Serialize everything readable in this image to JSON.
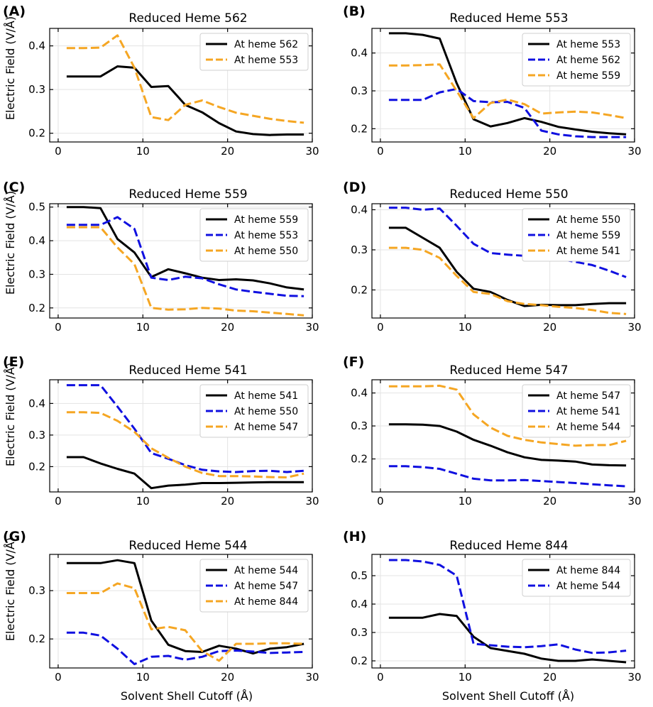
{
  "figure": {
    "xlabel": "Solvent Shell Cutoff (Å)",
    "ylabel": "Electric Field (V/Å)"
  },
  "colors": {
    "black": "#000000",
    "blue": "#1010e0",
    "orange": "#f5a623"
  },
  "chart_data": [
    {
      "type": "line",
      "label": "(A)",
      "title": "Reduced Heme 562",
      "xlim": [
        -1,
        30
      ],
      "ylim": [
        0.18,
        0.44
      ],
      "xticks": [
        0,
        10,
        20,
        30
      ],
      "yticks": [
        0.2,
        0.3,
        0.4
      ],
      "ytick_labels": [
        "0.2",
        "0.3",
        "0.4"
      ],
      "series": [
        {
          "name": "At heme 562",
          "color": "black",
          "style": "solid",
          "x": [
            1,
            3,
            5,
            7,
            9,
            11,
            13,
            15,
            17,
            19,
            21,
            23,
            25,
            27,
            29
          ],
          "y": [
            0.33,
            0.33,
            0.33,
            0.353,
            0.35,
            0.306,
            0.308,
            0.265,
            0.248,
            0.223,
            0.204,
            0.198,
            0.196,
            0.197,
            0.197
          ]
        },
        {
          "name": "At heme 553",
          "color": "orange",
          "style": "dashed",
          "x": [
            1,
            3,
            5,
            7,
            9,
            11,
            13,
            15,
            17,
            19,
            21,
            23,
            25,
            27,
            29
          ],
          "y": [
            0.395,
            0.395,
            0.396,
            0.424,
            0.35,
            0.237,
            0.23,
            0.265,
            0.275,
            0.26,
            0.247,
            0.24,
            0.233,
            0.228,
            0.224
          ]
        }
      ]
    },
    {
      "type": "line",
      "label": "(B)",
      "title": "Reduced Heme 553",
      "xlim": [
        -1,
        30
      ],
      "ylim": [
        0.165,
        0.465
      ],
      "xticks": [
        0,
        10,
        20,
        30
      ],
      "yticks": [
        0.2,
        0.3,
        0.4
      ],
      "ytick_labels": [
        "0.2",
        "0.3",
        "0.4"
      ],
      "series": [
        {
          "name": "At heme 553",
          "color": "black",
          "style": "solid",
          "x": [
            1,
            3,
            5,
            7,
            9,
            11,
            13,
            15,
            17,
            19,
            21,
            23,
            25,
            27,
            29
          ],
          "y": [
            0.452,
            0.452,
            0.448,
            0.438,
            0.32,
            0.225,
            0.206,
            0.215,
            0.228,
            0.218,
            0.205,
            0.198,
            0.192,
            0.188,
            0.185
          ]
        },
        {
          "name": "At heme 562",
          "color": "blue",
          "style": "dashed",
          "x": [
            1,
            3,
            5,
            7,
            9,
            11,
            13,
            15,
            17,
            19,
            21,
            23,
            25,
            27,
            29
          ],
          "y": [
            0.276,
            0.276,
            0.276,
            0.296,
            0.305,
            0.273,
            0.27,
            0.271,
            0.255,
            0.195,
            0.185,
            0.18,
            0.178,
            0.178,
            0.178
          ]
        },
        {
          "name": "At heme 559",
          "color": "orange",
          "style": "dashed",
          "x": [
            1,
            3,
            5,
            7,
            9,
            11,
            13,
            15,
            17,
            19,
            21,
            23,
            25,
            27,
            29
          ],
          "y": [
            0.367,
            0.367,
            0.368,
            0.37,
            0.3,
            0.228,
            0.268,
            0.277,
            0.265,
            0.24,
            0.243,
            0.245,
            0.243,
            0.236,
            0.228
          ]
        }
      ]
    },
    {
      "type": "line",
      "label": "(C)",
      "title": "Reduced Heme 559",
      "xlim": [
        -1,
        30
      ],
      "ylim": [
        0.17,
        0.51
      ],
      "xticks": [
        0,
        10,
        20,
        30
      ],
      "yticks": [
        0.2,
        0.3,
        0.4,
        0.5
      ],
      "ytick_labels": [
        "0.2",
        "0.3",
        "0.4",
        "0.5"
      ],
      "series": [
        {
          "name": "At heme 559",
          "color": "black",
          "style": "solid",
          "x": [
            1,
            3,
            5,
            7,
            9,
            11,
            13,
            15,
            17,
            19,
            21,
            23,
            25,
            27,
            29
          ],
          "y": [
            0.5,
            0.5,
            0.497,
            0.405,
            0.365,
            0.292,
            0.315,
            0.303,
            0.29,
            0.283,
            0.285,
            0.282,
            0.273,
            0.261,
            0.255
          ]
        },
        {
          "name": "At heme 553",
          "color": "blue",
          "style": "dashed",
          "x": [
            1,
            3,
            5,
            7,
            9,
            11,
            13,
            15,
            17,
            19,
            21,
            23,
            25,
            27,
            29
          ],
          "y": [
            0.447,
            0.447,
            0.447,
            0.47,
            0.435,
            0.29,
            0.283,
            0.293,
            0.288,
            0.27,
            0.255,
            0.248,
            0.242,
            0.236,
            0.235
          ]
        },
        {
          "name": "At heme 550",
          "color": "orange",
          "style": "dashed",
          "x": [
            1,
            3,
            5,
            7,
            9,
            11,
            13,
            15,
            17,
            19,
            21,
            23,
            25,
            27,
            29
          ],
          "y": [
            0.44,
            0.44,
            0.44,
            0.38,
            0.33,
            0.2,
            0.195,
            0.196,
            0.2,
            0.198,
            0.192,
            0.19,
            0.186,
            0.182,
            0.178
          ]
        }
      ]
    },
    {
      "type": "line",
      "label": "(D)",
      "title": "Reduced Heme 550",
      "xlim": [
        -1,
        30
      ],
      "ylim": [
        0.13,
        0.415
      ],
      "xticks": [
        0,
        10,
        20,
        30
      ],
      "yticks": [
        0.2,
        0.3,
        0.4
      ],
      "ytick_labels": [
        "0.2",
        "0.3",
        "0.4"
      ],
      "series": [
        {
          "name": "At heme 550",
          "color": "black",
          "style": "solid",
          "x": [
            1,
            3,
            5,
            7,
            9,
            11,
            13,
            15,
            17,
            19,
            21,
            23,
            25,
            27,
            29
          ],
          "y": [
            0.355,
            0.355,
            0.33,
            0.305,
            0.245,
            0.203,
            0.195,
            0.175,
            0.16,
            0.163,
            0.162,
            0.162,
            0.165,
            0.167,
            0.167
          ]
        },
        {
          "name": "At heme 559",
          "color": "blue",
          "style": "dashed",
          "x": [
            1,
            3,
            5,
            7,
            9,
            11,
            13,
            15,
            17,
            19,
            21,
            23,
            25,
            27,
            29
          ],
          "y": [
            0.405,
            0.405,
            0.4,
            0.403,
            0.36,
            0.315,
            0.292,
            0.288,
            0.285,
            0.282,
            0.278,
            0.27,
            0.262,
            0.248,
            0.232
          ]
        },
        {
          "name": "At heme 541",
          "color": "orange",
          "style": "dashed",
          "x": [
            1,
            3,
            5,
            7,
            9,
            11,
            13,
            15,
            17,
            19,
            21,
            23,
            25,
            27,
            29
          ],
          "y": [
            0.305,
            0.305,
            0.3,
            0.28,
            0.235,
            0.195,
            0.19,
            0.172,
            0.165,
            0.162,
            0.158,
            0.155,
            0.15,
            0.143,
            0.14
          ]
        }
      ]
    },
    {
      "type": "line",
      "label": "(E)",
      "title": "Reduced Heme 541",
      "xlim": [
        -1,
        30
      ],
      "ylim": [
        0.12,
        0.475
      ],
      "xticks": [
        0,
        10,
        20,
        30
      ],
      "yticks": [
        0.2,
        0.3,
        0.4
      ],
      "ytick_labels": [
        "0.2",
        "0.3",
        "0.4"
      ],
      "series": [
        {
          "name": "At heme 541",
          "color": "black",
          "style": "solid",
          "x": [
            1,
            3,
            5,
            7,
            9,
            11,
            13,
            15,
            17,
            19,
            21,
            23,
            25,
            27,
            29
          ],
          "y": [
            0.23,
            0.23,
            0.21,
            0.193,
            0.178,
            0.132,
            0.14,
            0.143,
            0.148,
            0.148,
            0.149,
            0.15,
            0.151,
            0.151,
            0.151
          ]
        },
        {
          "name": "At heme 550",
          "color": "blue",
          "style": "dashed",
          "x": [
            1,
            3,
            5,
            7,
            9,
            11,
            13,
            15,
            17,
            19,
            21,
            23,
            25,
            27,
            29
          ],
          "y": [
            0.458,
            0.458,
            0.458,
            0.39,
            0.32,
            0.243,
            0.225,
            0.205,
            0.19,
            0.185,
            0.183,
            0.186,
            0.187,
            0.183,
            0.187
          ]
        },
        {
          "name": "At heme 547",
          "color": "orange",
          "style": "dashed",
          "x": [
            1,
            3,
            5,
            7,
            9,
            11,
            13,
            15,
            17,
            19,
            21,
            23,
            25,
            27,
            29
          ],
          "y": [
            0.372,
            0.372,
            0.37,
            0.345,
            0.31,
            0.258,
            0.228,
            0.2,
            0.18,
            0.17,
            0.17,
            0.169,
            0.167,
            0.166,
            0.178
          ]
        }
      ]
    },
    {
      "type": "line",
      "label": "(F)",
      "title": "Reduced Heme 547",
      "xlim": [
        -1,
        30
      ],
      "ylim": [
        0.1,
        0.44
      ],
      "xticks": [
        0,
        10,
        20,
        30
      ],
      "yticks": [
        0.2,
        0.3,
        0.4
      ],
      "ytick_labels": [
        "0.2",
        "0.3",
        "0.4"
      ],
      "series": [
        {
          "name": "At heme 547",
          "color": "black",
          "style": "solid",
          "x": [
            1,
            3,
            5,
            7,
            9,
            11,
            13,
            15,
            17,
            19,
            21,
            23,
            25,
            27,
            29
          ],
          "y": [
            0.305,
            0.305,
            0.304,
            0.3,
            0.283,
            0.258,
            0.24,
            0.22,
            0.205,
            0.197,
            0.195,
            0.192,
            0.183,
            0.181,
            0.18
          ]
        },
        {
          "name": "At heme 541",
          "color": "blue",
          "style": "dashed",
          "x": [
            1,
            3,
            5,
            7,
            9,
            11,
            13,
            15,
            17,
            19,
            21,
            23,
            25,
            27,
            29
          ],
          "y": [
            0.178,
            0.178,
            0.175,
            0.17,
            0.155,
            0.14,
            0.135,
            0.135,
            0.136,
            0.133,
            0.13,
            0.127,
            0.123,
            0.12,
            0.117
          ]
        },
        {
          "name": "At heme 544",
          "color": "orange",
          "style": "dashed",
          "x": [
            1,
            3,
            5,
            7,
            9,
            11,
            13,
            15,
            17,
            19,
            21,
            23,
            25,
            27,
            29
          ],
          "y": [
            0.42,
            0.42,
            0.42,
            0.422,
            0.41,
            0.335,
            0.295,
            0.27,
            0.258,
            0.25,
            0.245,
            0.24,
            0.242,
            0.242,
            0.255
          ]
        }
      ]
    },
    {
      "type": "line",
      "label": "(G)",
      "title": "Reduced Heme 544",
      "xlim": [
        -1,
        30
      ],
      "ylim": [
        0.14,
        0.375
      ],
      "xticks": [
        0,
        10,
        20,
        30
      ],
      "yticks": [
        0.2,
        0.3
      ],
      "ytick_labels": [
        "0.2",
        "0.3"
      ],
      "series": [
        {
          "name": "At heme 544",
          "color": "black",
          "style": "solid",
          "x": [
            1,
            3,
            5,
            7,
            9,
            11,
            13,
            15,
            17,
            19,
            21,
            23,
            25,
            27,
            29
          ],
          "y": [
            0.357,
            0.357,
            0.357,
            0.363,
            0.357,
            0.238,
            0.188,
            0.175,
            0.173,
            0.186,
            0.18,
            0.17,
            0.18,
            0.183,
            0.19
          ]
        },
        {
          "name": "At heme 547",
          "color": "blue",
          "style": "dashed",
          "x": [
            1,
            3,
            5,
            7,
            9,
            11,
            13,
            15,
            17,
            19,
            21,
            23,
            25,
            27,
            29
          ],
          "y": [
            0.213,
            0.213,
            0.207,
            0.18,
            0.148,
            0.163,
            0.165,
            0.157,
            0.163,
            0.175,
            0.176,
            0.174,
            0.171,
            0.172,
            0.173
          ]
        },
        {
          "name": "At heme 844",
          "color": "orange",
          "style": "dashed",
          "x": [
            1,
            3,
            5,
            7,
            9,
            11,
            13,
            15,
            17,
            19,
            21,
            23,
            25,
            27,
            29
          ],
          "y": [
            0.295,
            0.295,
            0.295,
            0.315,
            0.305,
            0.22,
            0.225,
            0.218,
            0.175,
            0.155,
            0.19,
            0.19,
            0.191,
            0.191,
            0.19
          ]
        }
      ]
    },
    {
      "type": "line",
      "label": "(H)",
      "title": "Reduced Heme 844",
      "xlim": [
        -1,
        30
      ],
      "ylim": [
        0.175,
        0.575
      ],
      "xticks": [
        0,
        10,
        20,
        30
      ],
      "yticks": [
        0.2,
        0.3,
        0.4,
        0.5
      ],
      "ytick_labels": [
        "0.2",
        "0.3",
        "0.4",
        "0.5"
      ],
      "series": [
        {
          "name": "At heme 844",
          "color": "black",
          "style": "solid",
          "x": [
            1,
            3,
            5,
            7,
            9,
            11,
            13,
            15,
            17,
            19,
            21,
            23,
            25,
            27,
            29
          ],
          "y": [
            0.352,
            0.352,
            0.352,
            0.365,
            0.358,
            0.285,
            0.245,
            0.235,
            0.225,
            0.208,
            0.2,
            0.2,
            0.205,
            0.2,
            0.195
          ]
        },
        {
          "name": "At heme 544",
          "color": "blue",
          "style": "dashed",
          "x": [
            1,
            3,
            5,
            7,
            9,
            11,
            13,
            15,
            17,
            19,
            21,
            23,
            25,
            27,
            29
          ],
          "y": [
            0.555,
            0.555,
            0.55,
            0.538,
            0.5,
            0.26,
            0.255,
            0.25,
            0.248,
            0.252,
            0.258,
            0.24,
            0.228,
            0.23,
            0.236
          ]
        }
      ]
    }
  ]
}
